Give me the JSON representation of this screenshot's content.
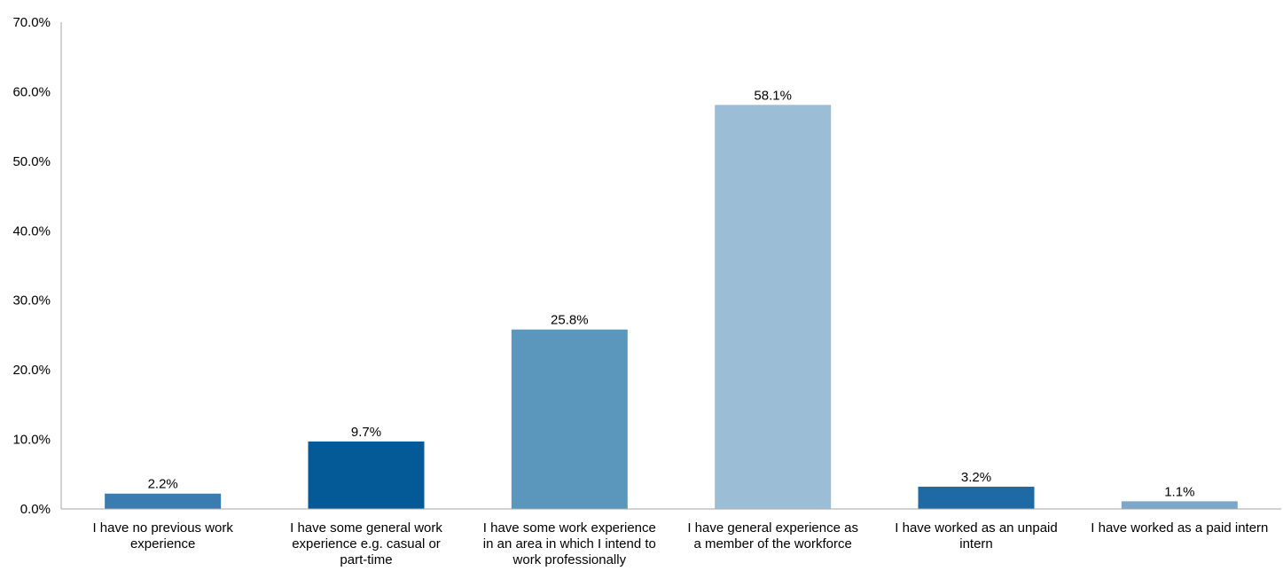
{
  "chart_data": {
    "type": "bar",
    "title": "",
    "xlabel": "",
    "ylabel": "",
    "ylim": [
      0,
      70
    ],
    "y_ticks": [
      "0.0%",
      "10.0%",
      "20.0%",
      "30.0%",
      "40.0%",
      "50.0%",
      "60.0%",
      "70.0%"
    ],
    "grid": false,
    "legend": "none",
    "categories": [
      [
        "I have no previous work",
        "experience"
      ],
      [
        "I have some general work",
        "experience e.g. casual or",
        "part-time"
      ],
      [
        "I have some work experience",
        "in an area in which I intend to",
        "work professionally"
      ],
      [
        "I have general experience as",
        "a member of the workforce"
      ],
      [
        "I have worked as an unpaid",
        "intern"
      ],
      [
        "I have worked as a paid intern"
      ]
    ],
    "values": [
      2.2,
      9.7,
      25.8,
      58.1,
      3.2,
      1.1
    ],
    "data_labels": [
      "2.2%",
      "9.7%",
      "25.8%",
      "58.1%",
      "3.2%",
      "1.1%"
    ],
    "bar_colors": [
      "#3a7bb0",
      "#045a96",
      "#5b97bc",
      "#9bbdd6",
      "#1e6aa4",
      "#7aa7ca"
    ],
    "axis_color": "#a6a6a6"
  }
}
